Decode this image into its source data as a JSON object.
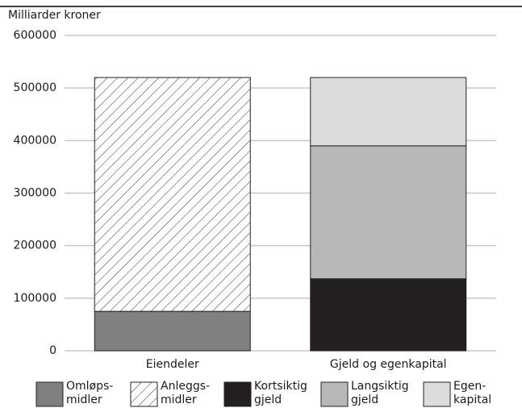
{
  "chart_data": {
    "type": "stacked_bar",
    "y_label": "Milliarder kroner",
    "categories": [
      "Eiendeler",
      "Gjeld og egenkapital"
    ],
    "series": [
      {
        "name": "Omløps-\nmidler",
        "color": "#808080",
        "values": [
          75000,
          null
        ]
      },
      {
        "name": "Anleggs-\nmidler",
        "color": "#ffffff",
        "hatch": true,
        "values": [
          445000,
          null
        ]
      },
      {
        "name": "Kortsiktig\ngjeld",
        "color": "#231f20",
        "values": [
          null,
          137000
        ]
      },
      {
        "name": "Langsiktig\ngjeld",
        "color": "#b8b8ba",
        "values": [
          null,
          253000
        ]
      },
      {
        "name": "Egen-\nkapital",
        "color": "#dcdcdd",
        "values": [
          null,
          130000
        ]
      }
    ],
    "ylim": [
      0,
      600000
    ],
    "yticks": [
      0,
      100000,
      200000,
      300000,
      400000,
      500000,
      600000
    ],
    "grid": true
  }
}
